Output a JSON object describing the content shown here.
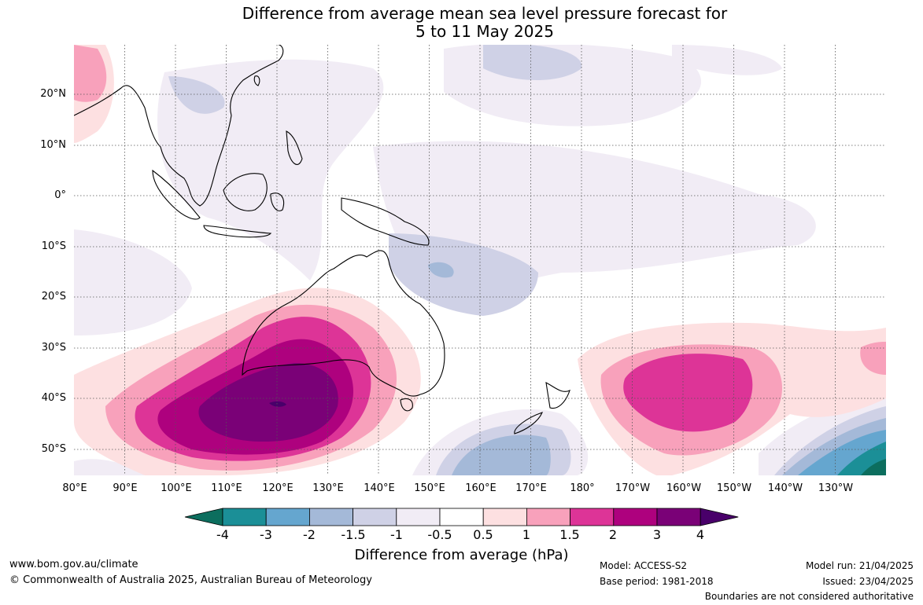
{
  "title": {
    "line1": "Difference from average mean sea level pressure forecast for",
    "line2": "5 to 11 May 2025"
  },
  "map": {
    "lat_labels": [
      "20°N",
      "10°N",
      "0°",
      "10°S",
      "20°S",
      "30°S",
      "40°S",
      "50°S"
    ],
    "lon_labels": [
      "80°E",
      "90°E",
      "100°E",
      "110°E",
      "120°E",
      "130°E",
      "140°E",
      "150°E",
      "160°E",
      "170°E",
      "180°",
      "170°W",
      "160°W",
      "150°W",
      "140°W",
      "130°W"
    ]
  },
  "colorbar": {
    "tick_labels": [
      "-4",
      "-3",
      "-2",
      "-1.5",
      "-1",
      "-0.5",
      "0.5",
      "1",
      "1.5",
      "2",
      "3",
      "4"
    ],
    "colors": [
      "#0c6e5e",
      "#1b8f97",
      "#65a6cf",
      "#a4b9d8",
      "#cfd1e6",
      "#f1ecf5",
      "#ffffff",
      "#fde0e1",
      "#f8a1bb",
      "#dd3497",
      "#ae017e",
      "#7a0177",
      "#49006a"
    ],
    "label": "Difference from average (hPa)"
  },
  "footer": {
    "website": "www.bom.gov.au/climate",
    "copyright": "© Commonwealth of Australia 2025, Australian Bureau of Meteorology",
    "model": "Model: ACCESS-S2",
    "base_period": "Base period: 1981-2018",
    "model_run": "Model run: 21/04/2025",
    "issued": "Issued: 23/04/2025",
    "disclaimer": "Boundaries are not considered authoritative"
  }
}
